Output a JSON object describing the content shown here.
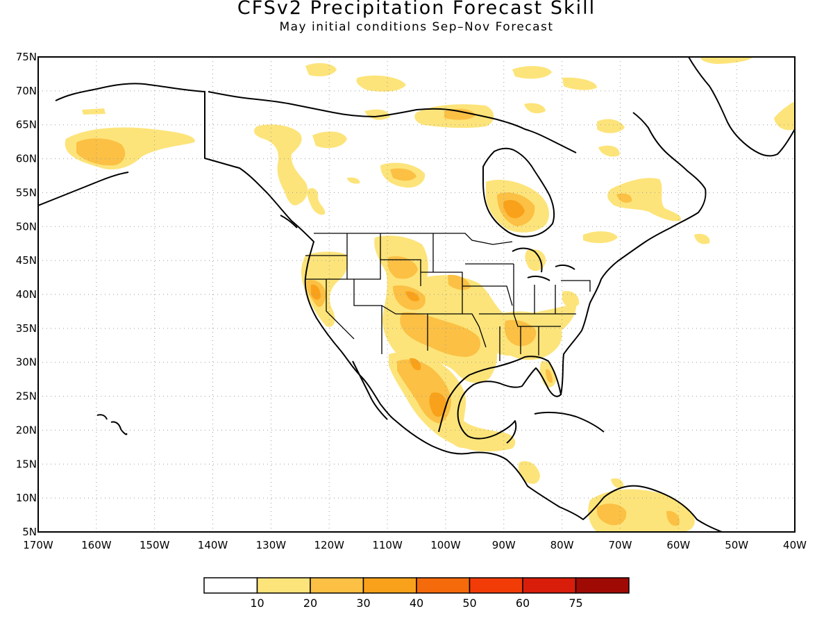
{
  "title": "CFSv2 Precipitation Forecast Skill",
  "subtitle": "May initial conditions   Sep–Nov Forecast",
  "map": {
    "lon_range": [
      -170,
      -40
    ],
    "lat_range": [
      5,
      75
    ],
    "projection": "cylindrical equidistant",
    "grid": "dotted",
    "lat_labels": [
      "75N",
      "70N",
      "65N",
      "60N",
      "55N",
      "50N",
      "45N",
      "40N",
      "35N",
      "30N",
      "25N",
      "20N",
      "15N",
      "10N",
      "5N"
    ],
    "lon_labels": [
      "170W",
      "160W",
      "150W",
      "140W",
      "130W",
      "120W",
      "110W",
      "100W",
      "90W",
      "80W",
      "70W",
      "60W",
      "50W",
      "40W"
    ]
  },
  "legend": {
    "colors": [
      "#ffffff",
      "#fde47a",
      "#fbc044",
      "#f9a11a",
      "#f56a0a",
      "#f23c08",
      "#d81d0b",
      "#a00a05"
    ],
    "labels": [
      "10",
      "20",
      "30",
      "40",
      "50",
      "60",
      "75"
    ]
  },
  "colors": {
    "c10": "#fde47a",
    "c20": "#fbc044",
    "c30": "#f9a11a",
    "c40": "#f56a0a"
  }
}
